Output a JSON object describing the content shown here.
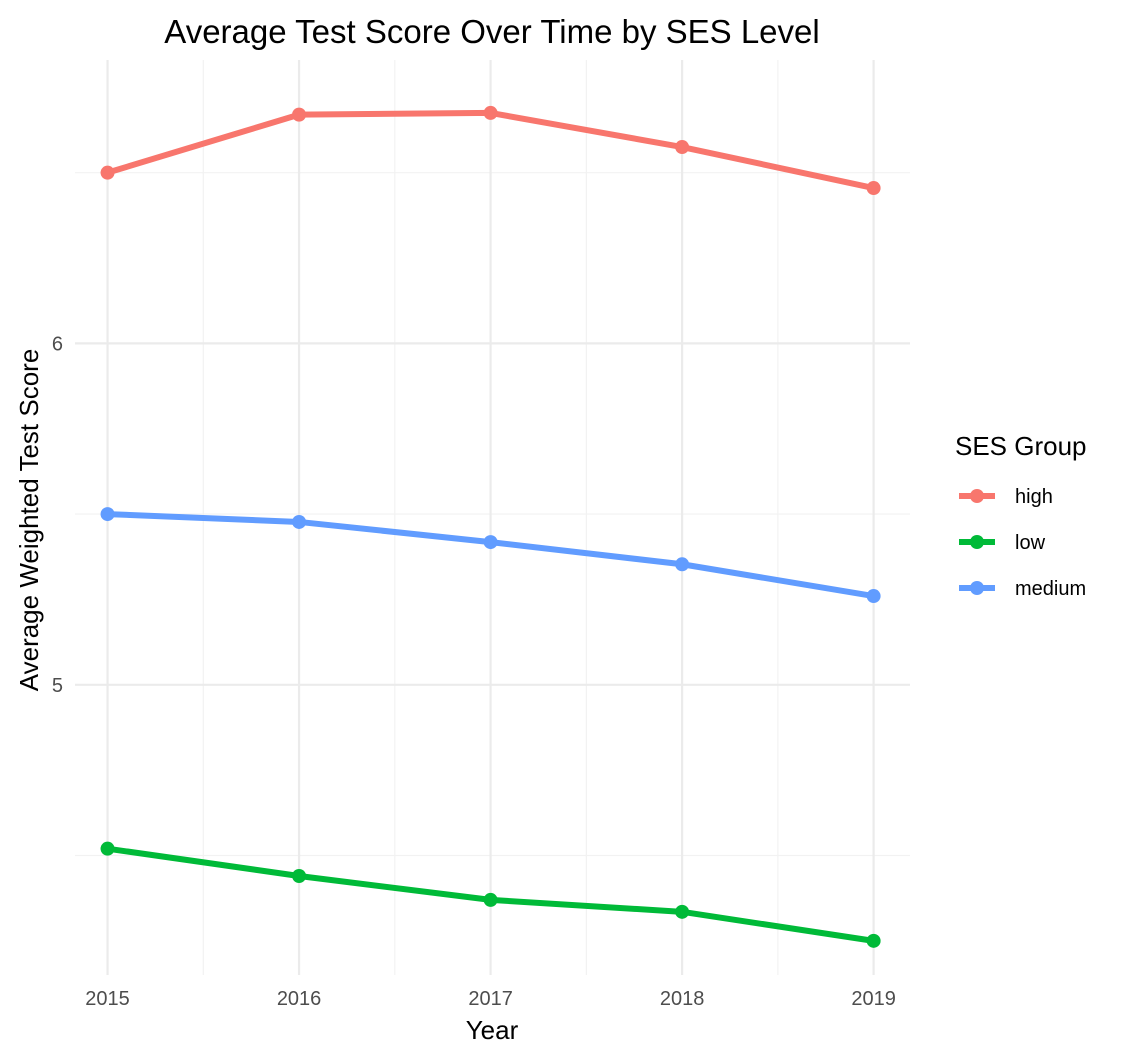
{
  "chart_data": {
    "type": "line",
    "title": "Average Test Score Over Time by SES Level",
    "xlabel": "Year",
    "ylabel": "Average Weighted Test Score",
    "x": [
      2015,
      2016,
      2017,
      2018,
      2019
    ],
    "x_tick_labels": [
      "2015",
      "2016",
      "2017",
      "2018",
      "2019"
    ],
    "y_ticks": [
      5,
      6
    ],
    "y_tick_labels": [
      "5",
      "6"
    ],
    "ylim": [
      4.15,
      6.83
    ],
    "xlim": [
      2014.83,
      2019.19
    ],
    "grid": true,
    "legend": {
      "title": "SES Group",
      "placement": "right"
    },
    "series": [
      {
        "name": "high",
        "color": "#F8766D",
        "values": [
          6.5,
          6.67,
          6.675,
          6.575,
          6.455
        ]
      },
      {
        "name": "low",
        "color": "#00BA38",
        "values": [
          4.52,
          4.44,
          4.37,
          4.335,
          4.25
        ]
      },
      {
        "name": "medium",
        "color": "#619CFF",
        "values": [
          5.5,
          5.477,
          5.418,
          5.353,
          5.26
        ]
      }
    ]
  }
}
